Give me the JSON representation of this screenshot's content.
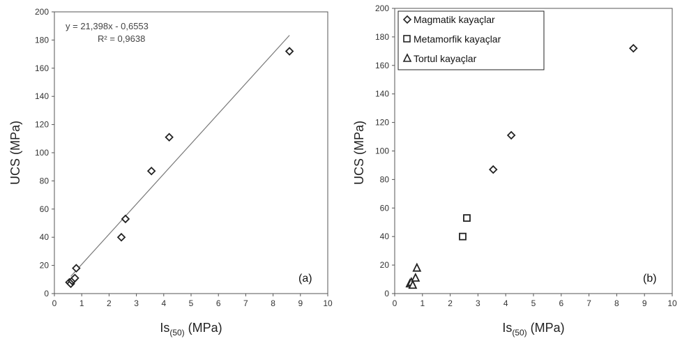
{
  "chart_data": [
    {
      "type": "scatter",
      "panel_label": "(a)",
      "xlabel_main": "Is",
      "xlabel_sub": "(50)",
      "xlabel_unit": " (MPa)",
      "ylabel": "UCS (MPa)",
      "xlim": [
        0,
        10
      ],
      "ylim": [
        0,
        200
      ],
      "x_ticks": [
        "0",
        "1",
        "2",
        "3",
        "4",
        "5",
        "6",
        "7",
        "8",
        "9",
        "10"
      ],
      "y_ticks": [
        "0",
        "20",
        "40",
        "60",
        "80",
        "100",
        "120",
        "140",
        "160",
        "180",
        "200"
      ],
      "trendline": {
        "slope": 21.398,
        "intercept": -0.6553,
        "x_range": [
          0.6,
          8.6
        ]
      },
      "equation": "y = 21,398x - 0,6553",
      "r_squared": "R² = 0,9638",
      "grid": false,
      "series": [
        {
          "marker": "diamond",
          "points": [
            {
              "x": 0.55,
              "y": 8
            },
            {
              "x": 0.6,
              "y": 7
            },
            {
              "x": 0.65,
              "y": 9
            },
            {
              "x": 0.7,
              "y": 10
            },
            {
              "x": 0.75,
              "y": 11
            },
            {
              "x": 0.8,
              "y": 18
            },
            {
              "x": 2.45,
              "y": 40
            },
            {
              "x": 2.6,
              "y": 53
            },
            {
              "x": 3.55,
              "y": 87
            },
            {
              "x": 4.2,
              "y": 111
            },
            {
              "x": 8.6,
              "y": 172
            }
          ]
        }
      ]
    },
    {
      "type": "scatter",
      "panel_label": "(b)",
      "xlabel_main": "Is",
      "xlabel_sub": "(50)",
      "xlabel_unit": " (MPa)",
      "ylabel": "UCS (MPa)",
      "xlim": [
        0,
        10
      ],
      "ylim": [
        0,
        200
      ],
      "x_ticks": [
        "0",
        "1",
        "2",
        "3",
        "4",
        "5",
        "6",
        "7",
        "8",
        "9",
        "10"
      ],
      "y_ticks": [
        "0",
        "20",
        "40",
        "60",
        "80",
        "100",
        "120",
        "140",
        "160",
        "180",
        "200"
      ],
      "legend_position": "top-left",
      "grid": false,
      "series": [
        {
          "name": "Magmatik kayaçlar",
          "marker": "diamond",
          "points": [
            {
              "x": 3.55,
              "y": 87
            },
            {
              "x": 4.2,
              "y": 111
            },
            {
              "x": 8.6,
              "y": 172
            }
          ]
        },
        {
          "name": "Metamorfik kayaçlar",
          "marker": "square",
          "points": [
            {
              "x": 2.45,
              "y": 40
            },
            {
              "x": 2.6,
              "y": 53
            }
          ]
        },
        {
          "name": "Tortul kayaçlar",
          "marker": "triangle",
          "points": [
            {
              "x": 0.55,
              "y": 7
            },
            {
              "x": 0.6,
              "y": 8
            },
            {
              "x": 0.65,
              "y": 6
            },
            {
              "x": 0.75,
              "y": 11
            },
            {
              "x": 0.8,
              "y": 18
            }
          ]
        }
      ]
    }
  ]
}
